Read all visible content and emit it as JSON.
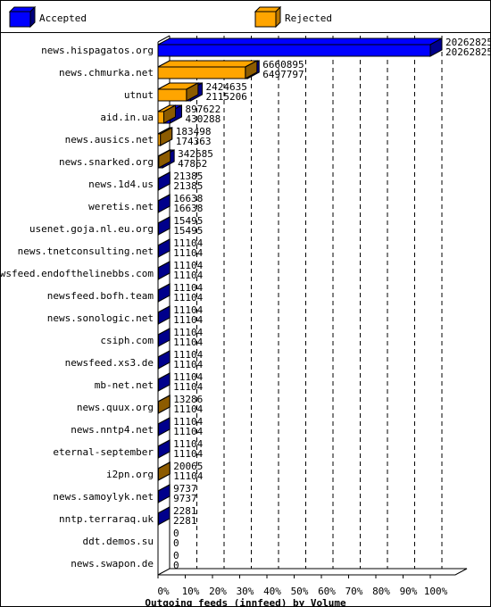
{
  "legend": {
    "accepted_label": "Accepted",
    "rejected_label": "Rejected",
    "accepted_color": "#0000ff",
    "rejected_color": "#ffa500"
  },
  "chart_data": {
    "type": "bar",
    "orientation": "horizontal",
    "style": "3d",
    "xlabel": "Outgoing feeds (innfeed) by Volume",
    "x_ticks": [
      "0%",
      "10%",
      "20%",
      "30%",
      "40%",
      "50%",
      "60%",
      "70%",
      "80%",
      "90%",
      "100%"
    ],
    "xlim": [
      0,
      100
    ],
    "grid": "vertical dashed",
    "legend_position": "top",
    "categories": [
      "news.hispagatos.org",
      "news.chmurka.net",
      "utnut",
      "aid.in.ua",
      "news.ausics.net",
      "news.snarked.org",
      "news.1d4.us",
      "weretis.net",
      "usenet.goja.nl.eu.org",
      "news.tnetconsulting.net",
      "newsfeed.endofthelinebbs.com",
      "newsfeed.bofh.team",
      "news.sonologic.net",
      "csiph.com",
      "newsfeed.xs3.de",
      "mb-net.net",
      "news.quux.org",
      "news.nntp4.net",
      "eternal-september",
      "i2pn.org",
      "news.samoylyk.net",
      "nntp.terraraq.uk",
      "ddt.demos.su",
      "news.swapon.de"
    ],
    "series": [
      {
        "name": "Accepted",
        "values": [
          20262825,
          6660895,
          2424635,
          897622,
          183498,
          342685,
          21385,
          16638,
          15495,
          11104,
          11104,
          11104,
          11104,
          11104,
          11104,
          11104,
          13286,
          11104,
          11104,
          20065,
          9737,
          2281,
          0,
          0
        ]
      },
      {
        "name": "Rejected",
        "values": [
          20262825,
          6497797,
          2115206,
          430288,
          174363,
          47862,
          21385,
          16638,
          15495,
          11104,
          11104,
          11104,
          11104,
          11104,
          11104,
          11104,
          11104,
          11104,
          11104,
          11104,
          9737,
          2281,
          0,
          0
        ]
      }
    ]
  }
}
